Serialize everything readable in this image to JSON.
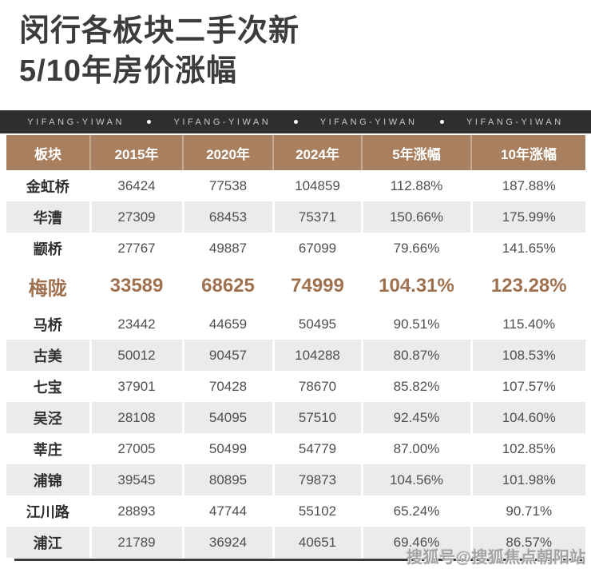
{
  "page": {
    "title_line1": "闵行各板块二手次新",
    "title_line2": "5/10年房价涨幅"
  },
  "banner": {
    "brand": "YIFANG-YIWAN",
    "repeats": 4,
    "separator_dot": "●"
  },
  "chart_data": {
    "type": "table",
    "title": "闵行各板块二手次新5/10年房价涨幅",
    "columns": [
      "板块",
      "2015年",
      "2020年",
      "2024年",
      "5年涨幅",
      "10年涨幅"
    ],
    "highlight_row_index": 3,
    "rows": [
      {
        "name": "金虹桥",
        "values": [
          "36424",
          "77538",
          "104859",
          "112.88%",
          "187.88%"
        ]
      },
      {
        "name": "华漕",
        "values": [
          "27309",
          "68453",
          "75371",
          "150.66%",
          "175.99%"
        ]
      },
      {
        "name": "颛桥",
        "values": [
          "27767",
          "49887",
          "67099",
          "79.66%",
          "141.65%"
        ]
      },
      {
        "name": "梅陇",
        "values": [
          "33589",
          "68625",
          "74999",
          "104.31%",
          "123.28%"
        ]
      },
      {
        "name": "马桥",
        "values": [
          "23442",
          "44659",
          "50495",
          "90.51%",
          "115.40%"
        ]
      },
      {
        "name": "古美",
        "values": [
          "50012",
          "90457",
          "104288",
          "80.87%",
          "108.53%"
        ]
      },
      {
        "name": "七宝",
        "values": [
          "37901",
          "70428",
          "78670",
          "85.82%",
          "107.57%"
        ]
      },
      {
        "name": "吴泾",
        "values": [
          "28108",
          "54095",
          "57510",
          "92.45%",
          "104.60%"
        ]
      },
      {
        "name": "莘庄",
        "values": [
          "27005",
          "50499",
          "54779",
          "87.00%",
          "102.85%"
        ]
      },
      {
        "name": "浦锦",
        "values": [
          "39545",
          "80895",
          "79873",
          "104.56%",
          "101.98%"
        ]
      },
      {
        "name": "江川路",
        "values": [
          "28893",
          "47744",
          "55102",
          "65.24%",
          "90.71%"
        ]
      },
      {
        "name": "浦江",
        "values": [
          "21789",
          "36924",
          "40651",
          "69.46%",
          "86.57%"
        ]
      }
    ]
  },
  "watermark": {
    "text": "搜狐号@搜狐焦点朝阳站"
  },
  "colors": {
    "header_bg": "#A8805F",
    "banner_bg": "#2E2E2E",
    "highlight_text": "#A0714F",
    "row_alt_bg": "#EBEBEB",
    "title_text": "#3C3C3C"
  }
}
